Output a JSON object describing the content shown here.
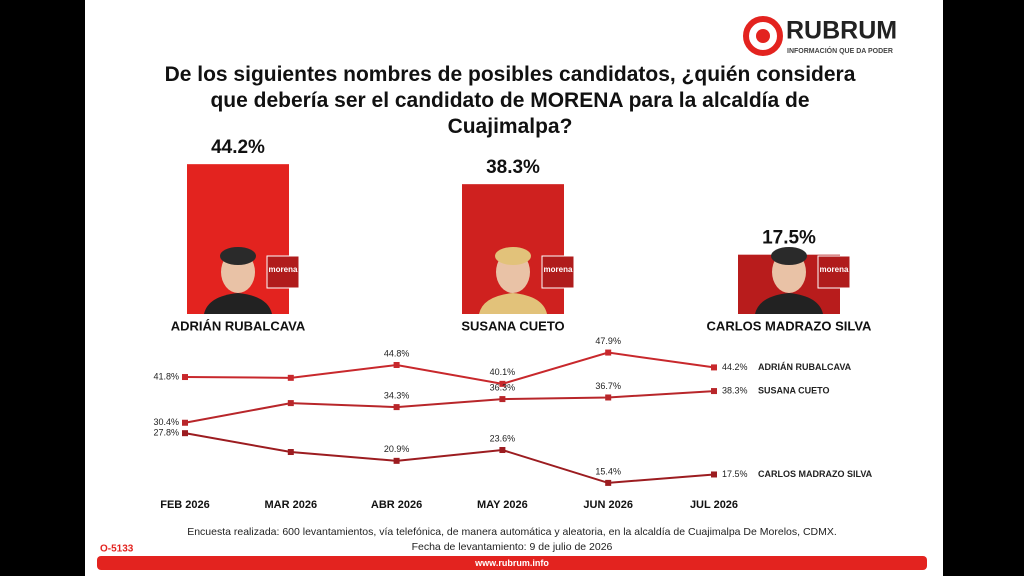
{
  "header": {
    "brand": "RUBRUM",
    "tagline": "INFORMACIÓN QUE DA PODER"
  },
  "party_logo": "morena",
  "chart_data": [
    {
      "type": "bar",
      "title": "De los siguientes nombres de posibles candidatos, ¿quién considera que debería ser el candidato de MORENA para la alcaldía de Cuajimalpa?",
      "categories": [
        "ADRIÁN RUBALCAVA",
        "SUSANA CUETO",
        "CARLOS MADRAZO SILVA"
      ],
      "values": [
        44.2,
        38.3,
        17.5
      ],
      "value_labels": [
        "44.2%",
        "38.3%",
        "17.5%"
      ],
      "colors": [
        "#e3231f",
        "#cf211f",
        "#b81c1c"
      ]
    },
    {
      "type": "line",
      "categories": [
        "FEB 2026",
        "MAR 2026",
        "ABR 2026",
        "MAY 2026",
        "JUN 2026",
        "JUL 2026"
      ],
      "series": [
        {
          "name": "ADRIÁN RUBALCAVA",
          "color": "#c8282c",
          "values": [
            41.8,
            41.6,
            44.8,
            40.1,
            47.9,
            44.2
          ],
          "value_labels": [
            "41.8%",
            null,
            "44.8%",
            "40.1%",
            "47.9%",
            "44.2%"
          ]
        },
        {
          "name": "SUSANA CUETO",
          "color": "#b8262a",
          "values": [
            30.4,
            35.3,
            34.3,
            36.3,
            36.7,
            38.3
          ],
          "value_labels": [
            "30.4%",
            null,
            "34.3%",
            "36.3%",
            "36.7%",
            "38.3%"
          ]
        },
        {
          "name": "CARLOS MADRAZO SILVA",
          "color": "#9c1c20",
          "values": [
            27.8,
            23.1,
            20.9,
            23.6,
            15.4,
            17.5
          ],
          "value_labels": [
            "27.8%",
            null,
            "20.9%",
            "23.6%",
            "15.4%",
            "17.5%"
          ]
        }
      ]
    }
  ],
  "footer": {
    "note": "Encuesta realizada: 600 levantamientos, vía telefónica, de manera automática y aleatoria, en la alcaldía de Cuajimalpa De Morelos, CDMX.",
    "date": "Fecha de levantamiento: 9 de julio de 2026",
    "code": "O-5133",
    "url": "www.rubrum.info"
  }
}
